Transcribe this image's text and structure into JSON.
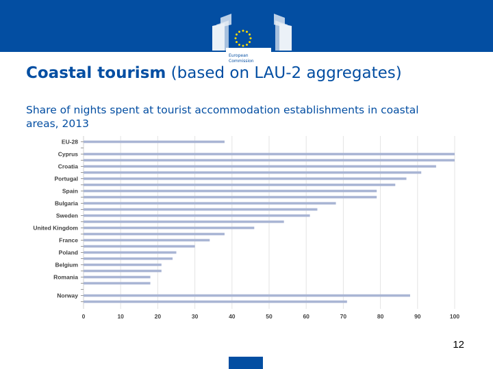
{
  "header": {
    "brand_line1": "European",
    "brand_line2": "Commission",
    "colors": {
      "bar": "#034ea2",
      "accent": "#ffdd00"
    }
  },
  "title": {
    "bold": "Coastal tourism",
    "rest": "(based on LAU-2 aggregates)"
  },
  "subtitle": "Share of nights spent at tourist accommodation establishments in coastal areas, 2013",
  "page_number": "12",
  "chart_data": {
    "type": "bar",
    "orientation": "horizontal",
    "title": "",
    "xlabel": "",
    "ylabel": "",
    "xlim": [
      0,
      100
    ],
    "xticks": [
      0,
      10,
      20,
      30,
      40,
      50,
      60,
      70,
      80,
      90,
      100
    ],
    "grid": true,
    "bar_color": "#a9b5d4",
    "categories": [
      "EU-28",
      "",
      "Cyprus",
      "",
      "Croatia",
      "",
      "Portugal",
      "",
      "Spain",
      "",
      "Bulgaria",
      "",
      "Sweden",
      "",
      "United Kingdom",
      "",
      "France",
      "",
      "Poland",
      "",
      "Belgium",
      "",
      "Romania",
      "",
      "",
      "Norway",
      ""
    ],
    "values": [
      38,
      null,
      100,
      100,
      95,
      91,
      87,
      84,
      79,
      79,
      68,
      63,
      61,
      54,
      46,
      38,
      34,
      30,
      25,
      24,
      21,
      21,
      18,
      18,
      null,
      88,
      71
    ]
  }
}
